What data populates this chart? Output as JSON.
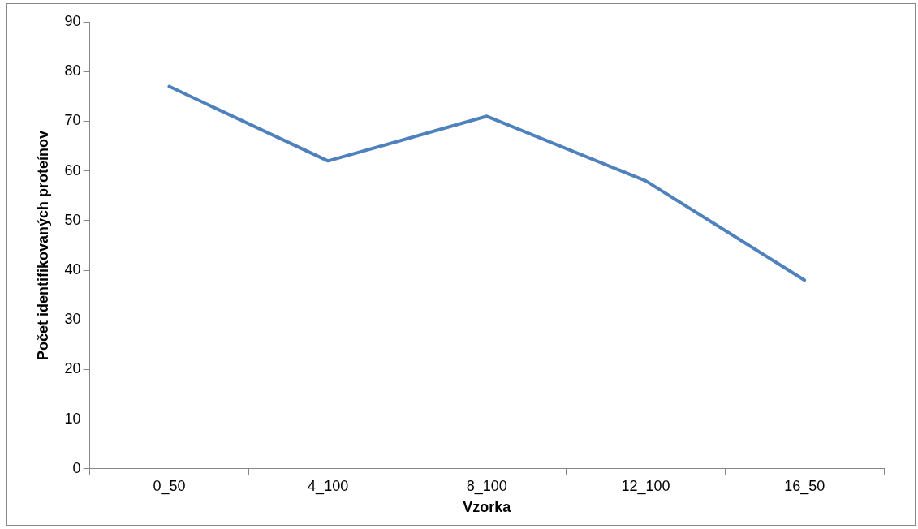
{
  "chart_data": {
    "type": "line",
    "xlabel": "Vzorka",
    "ylabel": "Počet identifikovaných proteínov",
    "categories": [
      "0_50",
      "4_100",
      "8_100",
      "12_100",
      "16_50"
    ],
    "series": [
      {
        "color": "#4f81bd",
        "values": [
          77,
          62,
          71,
          58,
          38
        ]
      }
    ],
    "ylim": [
      0,
      90
    ],
    "yticks": [
      0,
      10,
      20,
      30,
      40,
      50,
      60,
      70,
      80,
      90
    ],
    "grid": false,
    "legend": false,
    "marker": "none",
    "line_style": "solid"
  }
}
